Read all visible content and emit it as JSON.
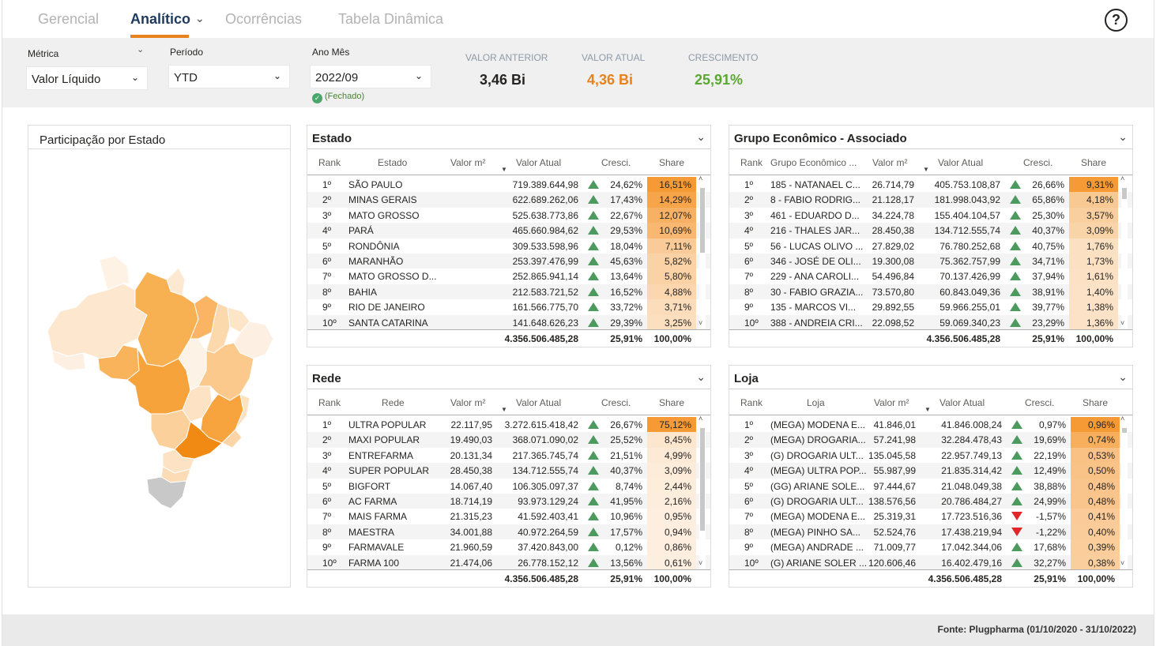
{
  "tabs": [
    {
      "label": "Gerencial"
    },
    {
      "label": "Analítico"
    },
    {
      "label": "Ocorrências"
    },
    {
      "label": "Tabela Dinâmica"
    }
  ],
  "help_label": "?",
  "filters": {
    "metrica": {
      "label": "Métrica",
      "value": "Valor Líquido"
    },
    "periodo": {
      "label": "Período",
      "value": "YTD"
    },
    "anomes": {
      "label": "Ano Mês",
      "value": "2022/09",
      "status": "(Fechado)"
    }
  },
  "kpis": {
    "anterior": {
      "label": "VALOR ANTERIOR",
      "value": "3,46 Bi",
      "color": "#252423"
    },
    "atual": {
      "label": "VALOR ATUAL",
      "value": "4,36 Bi",
      "color": "#e8821e"
    },
    "crescimento": {
      "label": "CRESCIMENTO",
      "value": "25,91%",
      "color": "#5aa832"
    }
  },
  "map": {
    "title": "Participação por Estado"
  },
  "tables": {
    "estado": {
      "title": "Estado",
      "headers": [
        "Rank",
        "Estado",
        "Valor m²",
        "Valor Atual",
        "Cresci.",
        "Share"
      ],
      "rows": [
        {
          "rank": "1º",
          "name": "SÃO PAULO",
          "m2": "",
          "atual": "719.389.644,98",
          "dir": "up",
          "cresc": "24,62%",
          "share": "16,51%",
          "s": 1.0
        },
        {
          "rank": "2º",
          "name": "MINAS GERAIS",
          "m2": "",
          "atual": "622.689.262,06",
          "dir": "up",
          "cresc": "17,43%",
          "share": "14,29%",
          "s": 0.87
        },
        {
          "rank": "3º",
          "name": "MATO GROSSO",
          "m2": "",
          "atual": "525.638.773,86",
          "dir": "up",
          "cresc": "22,67%",
          "share": "12,07%",
          "s": 0.73
        },
        {
          "rank": "4º",
          "name": "PARÁ",
          "m2": "",
          "atual": "465.660.984,62",
          "dir": "up",
          "cresc": "29,53%",
          "share": "10,69%",
          "s": 0.65
        },
        {
          "rank": "5º",
          "name": "RONDÔNIA",
          "m2": "",
          "atual": "309.533.598,96",
          "dir": "up",
          "cresc": "18,04%",
          "share": "7,11%",
          "s": 0.43
        },
        {
          "rank": "6º",
          "name": "MARANHÃO",
          "m2": "",
          "atual": "253.397.476,99",
          "dir": "up",
          "cresc": "45,63%",
          "share": "5,82%",
          "s": 0.35
        },
        {
          "rank": "7º",
          "name": "MATO GROSSO D...",
          "m2": "",
          "atual": "252.865.941,14",
          "dir": "up",
          "cresc": "13,64%",
          "share": "5,80%",
          "s": 0.35
        },
        {
          "rank": "8º",
          "name": "BAHIA",
          "m2": "",
          "atual": "212.583.721,52",
          "dir": "up",
          "cresc": "16,52%",
          "share": "4,88%",
          "s": 0.3
        },
        {
          "rank": "9º",
          "name": "RIO DE JANEIRO",
          "m2": "",
          "atual": "161.566.775,70",
          "dir": "up",
          "cresc": "33,72%",
          "share": "3,71%",
          "s": 0.22
        },
        {
          "rank": "10º",
          "name": "SANTA CATARINA",
          "m2": "",
          "atual": "141.648.626,23",
          "dir": "up",
          "cresc": "29,39%",
          "share": "3,25%",
          "s": 0.2
        }
      ],
      "total": {
        "atual": "4.356.506.485,28",
        "cresc": "25,91%",
        "share": "100,00%"
      }
    },
    "grupo": {
      "title": "Grupo Econômico - Associado",
      "headers": [
        "Rank",
        "Grupo Econômico ...",
        "Valor m²",
        "Valor Atual",
        "Cresci.",
        "Share"
      ],
      "rows": [
        {
          "rank": "1º",
          "name": "185 - NATANAEL C...",
          "m2": "26.714,79",
          "atual": "405.753.108,87",
          "dir": "up",
          "cresc": "26,66%",
          "share": "9,31%",
          "s": 1.0
        },
        {
          "rank": "2º",
          "name": "8 - FABIO RODRIG...",
          "m2": "21.128,17",
          "atual": "181.998.043,92",
          "dir": "up",
          "cresc": "65,86%",
          "share": "4,18%",
          "s": 0.45
        },
        {
          "rank": "3º",
          "name": "461 - EDUARDO D...",
          "m2": "34.224,78",
          "atual": "155.404.104,57",
          "dir": "up",
          "cresc": "25,30%",
          "share": "3,57%",
          "s": 0.38
        },
        {
          "rank": "4º",
          "name": "216 - THALES JAR...",
          "m2": "28.450,38",
          "atual": "134.712.555,74",
          "dir": "up",
          "cresc": "40,37%",
          "share": "3,09%",
          "s": 0.33
        },
        {
          "rank": "5º",
          "name": "56 - LUCAS OLIVO ...",
          "m2": "27.829,02",
          "atual": "76.780.252,68",
          "dir": "up",
          "cresc": "40,75%",
          "share": "1,76%",
          "s": 0.19
        },
        {
          "rank": "6º",
          "name": "346 - JOSÉ DE OLI...",
          "m2": "19.300,08",
          "atual": "75.362.757,99",
          "dir": "up",
          "cresc": "34,71%",
          "share": "1,73%",
          "s": 0.19
        },
        {
          "rank": "7º",
          "name": "229 - ANA CAROLI...",
          "m2": "54.496,84",
          "atual": "70.137.426,99",
          "dir": "up",
          "cresc": "37,94%",
          "share": "1,61%",
          "s": 0.17
        },
        {
          "rank": "8º",
          "name": "30 - FABIO GRAZIA...",
          "m2": "73.570,80",
          "atual": "60.843.049,36",
          "dir": "up",
          "cresc": "38,91%",
          "share": "1,40%",
          "s": 0.15
        },
        {
          "rank": "9º",
          "name": "135 - MARCOS VI...",
          "m2": "29.892,55",
          "atual": "59.966.255,01",
          "dir": "up",
          "cresc": "39,77%",
          "share": "1,38%",
          "s": 0.15
        },
        {
          "rank": "10º",
          "name": "388 - ANDREIA CRI...",
          "m2": "22.098,52",
          "atual": "59.069.340,23",
          "dir": "up",
          "cresc": "23,29%",
          "share": "1,36%",
          "s": 0.15
        }
      ],
      "total": {
        "atual": "4.356.506.485,28",
        "cresc": "25,91%",
        "share": "100,00%"
      }
    },
    "rede": {
      "title": "Rede",
      "headers": [
        "Rank",
        "Rede",
        "Valor m²",
        "Valor Atual",
        "Cresci.",
        "Share"
      ],
      "rows": [
        {
          "rank": "1º",
          "name": "ULTRA POPULAR",
          "m2": "22.117,95",
          "atual": "3.272.615.418,42",
          "dir": "up",
          "cresc": "26,67%",
          "share": "75,12%",
          "s": 1.0
        },
        {
          "rank": "2º",
          "name": "MAXI POPULAR",
          "m2": "19.490,03",
          "atual": "368.071.090,02",
          "dir": "up",
          "cresc": "25,52%",
          "share": "8,45%",
          "s": 0.12
        },
        {
          "rank": "3º",
          "name": "ENTREFARMA",
          "m2": "20.131,34",
          "atual": "217.365.745,74",
          "dir": "up",
          "cresc": "21,51%",
          "share": "4,99%",
          "s": 0.07
        },
        {
          "rank": "4º",
          "name": "SUPER POPULAR",
          "m2": "28.450,38",
          "atual": "134.712.555,74",
          "dir": "up",
          "cresc": "40,37%",
          "share": "3,09%",
          "s": 0.05
        },
        {
          "rank": "5º",
          "name": "BIGFORT",
          "m2": "14.067,40",
          "atual": "106.305.097,37",
          "dir": "up",
          "cresc": "8,74%",
          "share": "2,44%",
          "s": 0.04
        },
        {
          "rank": "6º",
          "name": "AC FARMA",
          "m2": "18.714,19",
          "atual": "93.973.129,24",
          "dir": "up",
          "cresc": "41,95%",
          "share": "2,16%",
          "s": 0.03
        },
        {
          "rank": "7º",
          "name": "MAIS FARMA",
          "m2": "21.315,23",
          "atual": "41.592.403,41",
          "dir": "up",
          "cresc": "10,96%",
          "share": "0,95%",
          "s": 0.02
        },
        {
          "rank": "8º",
          "name": "MAESTRA",
          "m2": "34.001,88",
          "atual": "40.972.264,59",
          "dir": "up",
          "cresc": "17,57%",
          "share": "0,94%",
          "s": 0.02
        },
        {
          "rank": "9º",
          "name": "FARMAVALE",
          "m2": "21.960,59",
          "atual": "37.420.843,00",
          "dir": "up",
          "cresc": "0,12%",
          "share": "0,86%",
          "s": 0.02
        },
        {
          "rank": "10º",
          "name": "FARMA 100",
          "m2": "21.474,06",
          "atual": "26.778.152,12",
          "dir": "up",
          "cresc": "13,56%",
          "share": "0,61%",
          "s": 0.01
        }
      ],
      "total": {
        "atual": "4.356.506.485,28",
        "cresc": "25,91%",
        "share": "100,00%"
      }
    },
    "loja": {
      "title": "Loja",
      "headers": [
        "Rank",
        "Loja",
        "Valor m²",
        "Valor Atual",
        "Cresci.",
        "Share"
      ],
      "rows": [
        {
          "rank": "1º",
          "name": "(MEGA) MODENA E...",
          "m2": "41.846,01",
          "atual": "41.846.008,24",
          "dir": "up",
          "cresc": "0,97%",
          "share": "0,96%",
          "s": 1.0
        },
        {
          "rank": "2º",
          "name": "(MEGA) DROGARIA...",
          "m2": "57.241,98",
          "atual": "32.284.478,43",
          "dir": "up",
          "cresc": "19,69%",
          "share": "0,74%",
          "s": 0.77
        },
        {
          "rank": "3º",
          "name": "(G) DROGARIA ULT...",
          "m2": "135.045,58",
          "atual": "22.957.749,13",
          "dir": "up",
          "cresc": "22,19%",
          "share": "0,53%",
          "s": 0.55
        },
        {
          "rank": "4º",
          "name": "(MEGA) ULTRA POP...",
          "m2": "55.987,99",
          "atual": "21.835.314,42",
          "dir": "up",
          "cresc": "12,49%",
          "share": "0,50%",
          "s": 0.52
        },
        {
          "rank": "5º",
          "name": "(GG) ARIANE SOLE...",
          "m2": "97.444,67",
          "atual": "21.048.049,38",
          "dir": "up",
          "cresc": "38,88%",
          "share": "0,48%",
          "s": 0.5
        },
        {
          "rank": "6º",
          "name": "(G) DROGARIA ULT...",
          "m2": "138.576,56",
          "atual": "20.786.484,27",
          "dir": "up",
          "cresc": "24,99%",
          "share": "0,48%",
          "s": 0.5
        },
        {
          "rank": "7º",
          "name": "(MEGA) MODENA E...",
          "m2": "25.319,31",
          "atual": "17.723.516,36",
          "dir": "down",
          "cresc": "-1,57%",
          "share": "0,41%",
          "s": 0.43
        },
        {
          "rank": "8º",
          "name": "(MEGA) PINHO SA...",
          "m2": "52.524,76",
          "atual": "17.438.219,94",
          "dir": "down",
          "cresc": "-1,22%",
          "share": "0,40%",
          "s": 0.42
        },
        {
          "rank": "9º",
          "name": "(MEGA) ANDRADE ...",
          "m2": "71.009,77",
          "atual": "17.042.344,06",
          "dir": "up",
          "cresc": "17,68%",
          "share": "0,39%",
          "s": 0.41
        },
        {
          "rank": "10º",
          "name": "(G) ARIANE SOLER ...",
          "m2": "120.606,46",
          "atual": "16.402.479,16",
          "dir": "up",
          "cresc": "32,27%",
          "share": "0,38%",
          "s": 0.4
        }
      ],
      "total": {
        "atual": "4.356.506.485,28",
        "cresc": "25,91%",
        "share": "100,00%"
      }
    }
  },
  "footer": "Fonte: Plugpharma (01/10/2020 - 31/10/2022)",
  "colors": {
    "accent": "#e8821e",
    "up": "#4d9a5e",
    "down": "#e0262a",
    "share_max": "#f59a35",
    "share_min": "#fdf0e2"
  }
}
